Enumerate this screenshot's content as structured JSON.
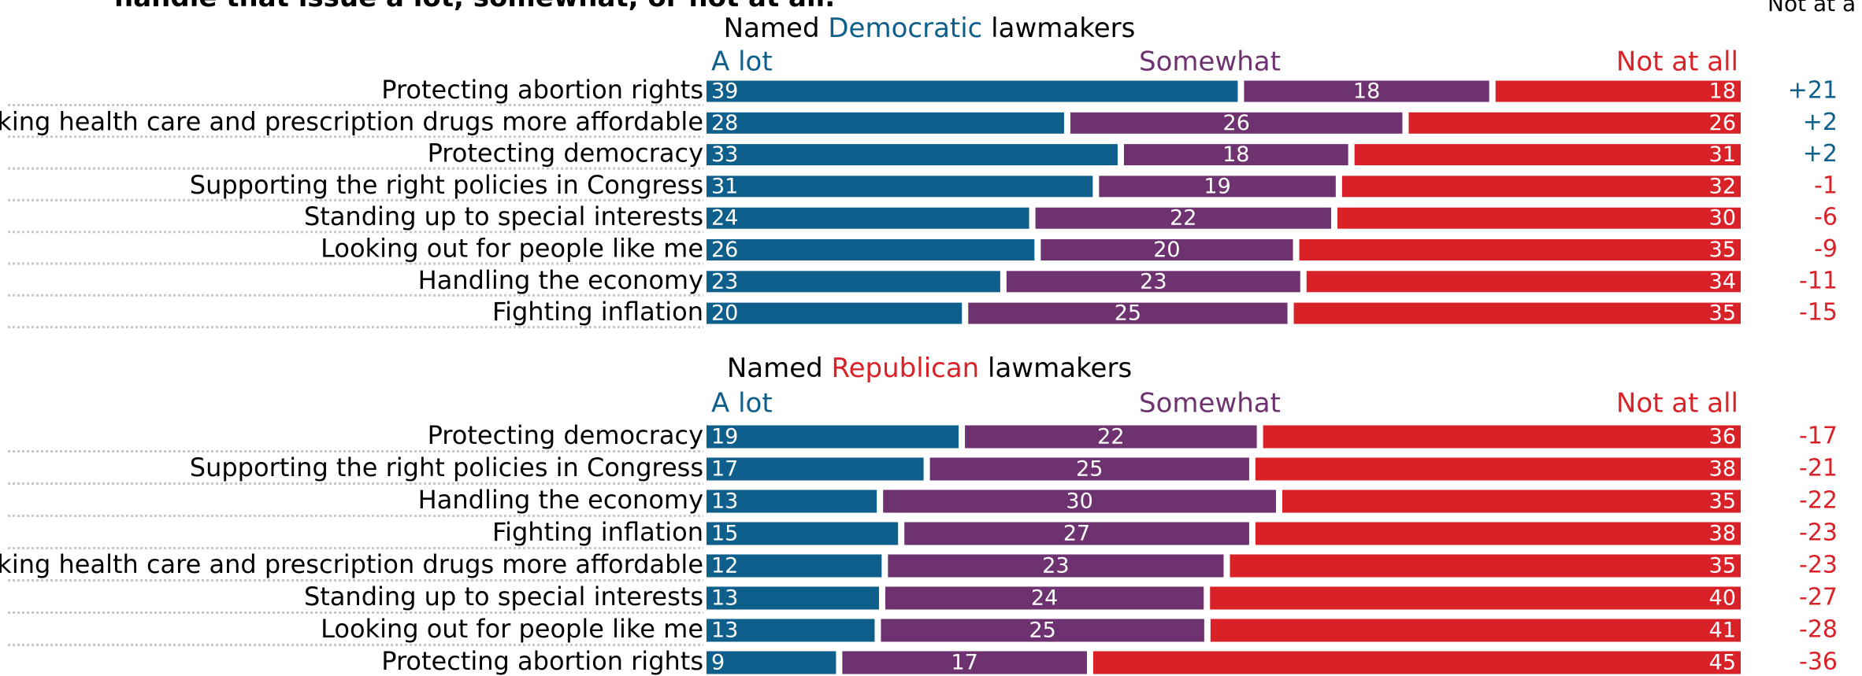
{
  "header": {
    "title_fragment": "handle that issue a lot, somewhat, or not at all.",
    "corner_fragment": "Not at a"
  },
  "colors": {
    "a_lot": "#0e5f8b",
    "somewhat": "#6e3270",
    "not_at_all": "#d92128",
    "text": "#000000"
  },
  "chart_data": [
    {
      "type": "bar",
      "stacked": true,
      "orientation": "horizontal",
      "title_prefix": "Named ",
      "title_party": "Democratic",
      "title_suffix": " lawmakers",
      "title_party_color": "#0e5f8b",
      "legend": [
        "A lot",
        "Somewhat",
        "Not at all"
      ],
      "categories": [
        "Protecting abortion rights",
        "Making health care and prescription drugs more affordable",
        "Protecting democracy",
        "Supporting the right policies in Congress",
        "Standing up to special interests",
        "Looking out for people like me",
        "Handling the economy",
        "Fighting inflation"
      ],
      "series": [
        {
          "name": "A lot",
          "values": [
            39,
            28,
            33,
            31,
            24,
            26,
            23,
            20
          ]
        },
        {
          "name": "Somewhat",
          "values": [
            18,
            26,
            18,
            19,
            22,
            20,
            23,
            25
          ]
        },
        {
          "name": "Not at all",
          "values": [
            18,
            26,
            31,
            32,
            30,
            35,
            34,
            35
          ]
        }
      ],
      "net": [
        "+21",
        "+2",
        "+2",
        "-1",
        "-6",
        "-9",
        "-11",
        "-15"
      ]
    },
    {
      "type": "bar",
      "stacked": true,
      "orientation": "horizontal",
      "title_prefix": "Named ",
      "title_party": "Republican",
      "title_suffix": " lawmakers",
      "title_party_color": "#d92128",
      "legend": [
        "A lot",
        "Somewhat",
        "Not at all"
      ],
      "categories": [
        "Protecting democracy",
        "Supporting the right policies in Congress",
        "Handling the economy",
        "Fighting inflation",
        "Making health care and prescription drugs more affordable",
        "Standing up to special interests",
        "Looking out for people like me",
        "Protecting abortion rights"
      ],
      "series": [
        {
          "name": "A lot",
          "values": [
            19,
            17,
            13,
            15,
            12,
            13,
            13,
            9
          ]
        },
        {
          "name": "Somewhat",
          "values": [
            22,
            25,
            30,
            27,
            23,
            24,
            25,
            17
          ]
        },
        {
          "name": "Not at all",
          "values": [
            36,
            38,
            35,
            38,
            35,
            40,
            41,
            45
          ]
        }
      ],
      "net": [
        "-17",
        "-21",
        "-22",
        "-23",
        "-23",
        "-27",
        "-28",
        "-36"
      ]
    }
  ]
}
